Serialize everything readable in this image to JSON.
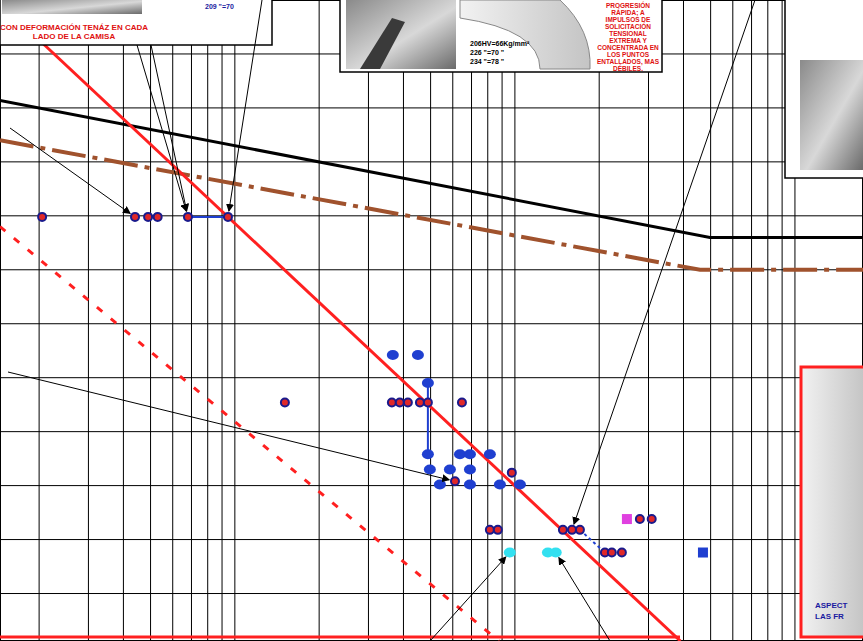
{
  "chart_data": {
    "type": "scatter",
    "log": "x",
    "grid": true,
    "tick_labels": false,
    "xlim": [
      1450,
      1750000
    ],
    "ylim": [
      0.6,
      60
    ],
    "xticks": [
      2000,
      3000,
      4000,
      5000,
      6000,
      7000,
      8000,
      9000,
      10000,
      20000,
      30000,
      40000,
      50000,
      60000,
      70000,
      80000,
      90000,
      100000,
      200000,
      300000,
      400000,
      500000,
      600000,
      700000,
      800000,
      900000,
      1000000
    ],
    "yticks": [
      5,
      10,
      15,
      20,
      25,
      30,
      35,
      40,
      45,
      50,
      55
    ],
    "series": [
      {
        "type": "scatter",
        "marker": "circle",
        "color": "#e02828",
        "x": [
          2050,
          4400,
          4900,
          5300,
          6800,
          9450,
          15090,
          36370,
          38810,
          41480,
          45800,
          48900,
          64700,
          61100,
          97500,
          81400,
          86900,
          148400,
          159900,
          170700,
          209600,
          221900,
          241000,
          279400,
          308000
        ],
        "values": [
          39.9,
          39.9,
          39.9,
          39.9,
          39.9,
          39.9,
          22.7,
          22.7,
          22.7,
          22.7,
          22.7,
          22.7,
          22.7,
          15.4,
          16.2,
          10.9,
          10.9,
          10.9,
          10.9,
          10.9,
          8.8,
          8.8,
          8.8,
          11.9,
          11.9
        ]
      },
      {
        "type": "scatter",
        "marker": "ellipse",
        "color": "#1f3fd0",
        "x": [
          36650,
          45050,
          48900,
          48900,
          63650,
          69100,
          81400,
          49700,
          58600,
          69100,
          53970,
          69100,
          88400,
          104200
        ],
        "values": [
          27.1,
          27.1,
          24.5,
          17.9,
          17.9,
          17.9,
          17.9,
          16.5,
          16.5,
          16.5,
          15.1,
          15.1,
          15.1,
          15.1
        ]
      },
      {
        "type": "scatter",
        "marker": "ellipse",
        "color": "#33e0f0",
        "x": [
          95900,
          131200,
          139900
        ],
        "values": [
          8.8,
          8.8,
          8.8
        ]
      },
      {
        "type": "scatter",
        "marker": "square",
        "color": "#e040e0",
        "x": [
          251200
        ],
        "values": [
          11.9
        ]
      },
      {
        "type": "scatter",
        "marker": "square",
        "color": "#1f3fd0",
        "x": [
          469400
        ],
        "values": [
          8.8
        ]
      },
      {
        "type": "line",
        "line_style": "solid",
        "color": "#000000",
        "x": [
          1450,
          497000,
          1750000
        ],
        "values": [
          50.7,
          38.0,
          38.0
        ]
      },
      {
        "type": "line",
        "line_style": "dashdot",
        "color": "#a0522d",
        "x": [
          1450,
          458000,
          1750000
        ],
        "values": [
          47.0,
          35.0,
          35.0
        ]
      },
      {
        "type": "line",
        "line_style": "solid",
        "color": "#ff2020",
        "x": [
          1450,
          390000
        ],
        "values": [
          59.7,
          0.6
        ]
      },
      {
        "type": "line",
        "line_style": "dashed",
        "color": "#ff2020",
        "x": [
          1450,
          87700
        ],
        "values": [
          39.0,
          0.6
        ]
      }
    ],
    "annotations": [
      "CON DEFORMACIÓN TENÁZ EN CADA LADO DE LA CAMISA",
      "209 \"=70",
      "PROGRESIÓN RÁPIDA; A IMPULSOS DE SOLICITACIÓN TENSIONAL EXTREMA Y CONCENTRADA EN LOS PUNTOS ENTALLADOS, MAS DÉBILES.",
      "206HV=66Kg/mm²",
      "226 \"=70 \"",
      "234 \"=78 \"",
      "ASPECT",
      "LAS FR"
    ]
  }
}
